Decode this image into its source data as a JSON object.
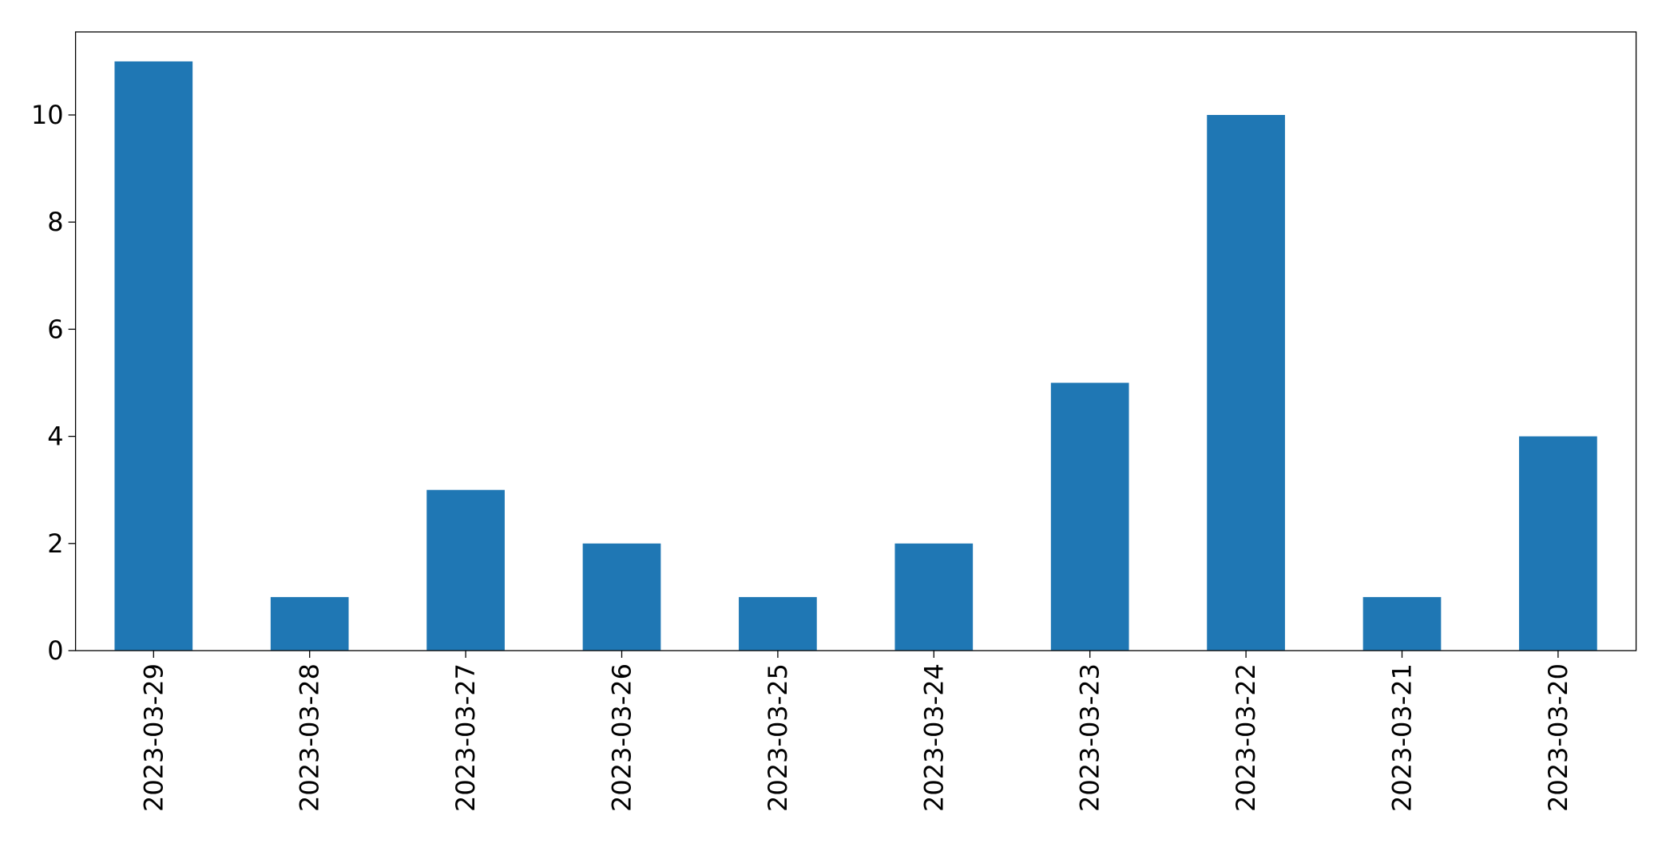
{
  "chart_data": {
    "type": "bar",
    "categories": [
      "2023-03-29",
      "2023-03-28",
      "2023-03-27",
      "2023-03-26",
      "2023-03-25",
      "2023-03-24",
      "2023-03-23",
      "2023-03-22",
      "2023-03-21",
      "2023-03-20"
    ],
    "values": [
      11,
      1,
      3,
      2,
      1,
      2,
      5,
      10,
      1,
      4
    ],
    "color": "#1f77b4",
    "ylim": [
      0,
      11.55
    ],
    "yticks": [
      0,
      2,
      4,
      6,
      8,
      10
    ],
    "grid": false
  }
}
